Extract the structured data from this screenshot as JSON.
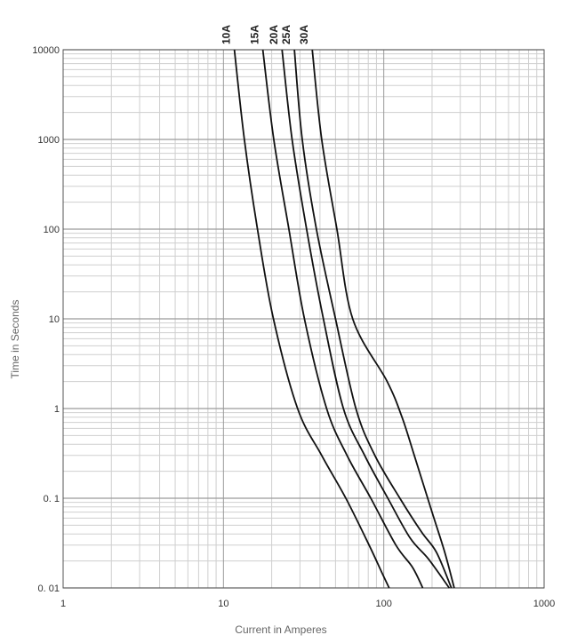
{
  "chart_data": {
    "type": "line",
    "title": "",
    "xlabel": "Current in Amperes",
    "ylabel": "Time in Seconds",
    "x_scale": "log",
    "y_scale": "log",
    "xlim": [
      1,
      1000
    ],
    "ylim": [
      0.01,
      10000
    ],
    "x_ticks": [
      {
        "value": 1,
        "label": "1"
      },
      {
        "value": 10,
        "label": "10"
      },
      {
        "value": 100,
        "label": "100"
      },
      {
        "value": 1000,
        "label": "1000"
      }
    ],
    "y_ticks": [
      {
        "value": 0.01,
        "label": "0. 01"
      },
      {
        "value": 0.1,
        "label": "0. 1"
      },
      {
        "value": 1,
        "label": "1"
      },
      {
        "value": 10,
        "label": "10"
      },
      {
        "value": 100,
        "label": "100"
      },
      {
        "value": 1000,
        "label": "1000"
      },
      {
        "value": 10000,
        "label": "10000"
      }
    ],
    "grid": true,
    "legend": "curve labels rotated at top of each curve",
    "series": [
      {
        "name": "10A",
        "points": [
          [
            11.7,
            10000
          ],
          [
            13.5,
            1000
          ],
          [
            16.3,
            100
          ],
          [
            20.5,
            10
          ],
          [
            29,
            1
          ],
          [
            41,
            0.3
          ],
          [
            58,
            0.1
          ],
          [
            81,
            0.03
          ],
          [
            97,
            0.015
          ],
          [
            108,
            0.01
          ]
        ]
      },
      {
        "name": "15A",
        "points": [
          [
            17.6,
            10000
          ],
          [
            20.6,
            1000
          ],
          [
            25.6,
            100
          ],
          [
            32,
            10
          ],
          [
            44,
            1
          ],
          [
            59,
            0.3
          ],
          [
            83,
            0.1
          ],
          [
            119,
            0.03
          ],
          [
            151,
            0.017
          ],
          [
            175,
            0.01
          ]
        ]
      },
      {
        "name": "20A",
        "points": [
          [
            23.2,
            10000
          ],
          [
            26.8,
            1000
          ],
          [
            33,
            100
          ],
          [
            42,
            10
          ],
          [
            56,
            1
          ],
          [
            76,
            0.3
          ],
          [
            106,
            0.1
          ],
          [
            146,
            0.036
          ],
          [
            190,
            0.021
          ],
          [
            256,
            0.01
          ]
        ]
      },
      {
        "name": "25A",
        "points": [
          [
            27.7,
            10000
          ],
          [
            31,
            1000
          ],
          [
            38,
            100
          ],
          [
            50,
            10
          ],
          [
            67,
            1
          ],
          [
            88,
            0.3
          ],
          [
            126,
            0.1
          ],
          [
            172,
            0.042
          ],
          [
            213,
            0.025
          ],
          [
            264,
            0.01
          ]
        ]
      },
      {
        "name": "30A",
        "points": [
          [
            35.8,
            10000
          ],
          [
            41,
            1000
          ],
          [
            51,
            100
          ],
          [
            64,
            10
          ],
          [
            105,
            2
          ],
          [
            130,
            0.8
          ],
          [
            155,
            0.3
          ],
          [
            200,
            0.07
          ],
          [
            240,
            0.025
          ],
          [
            275,
            0.01
          ]
        ]
      }
    ]
  },
  "colors": {
    "curve": "#111111",
    "grid_major": "#9a9a9a",
    "grid_minor": "#cfcfcf",
    "frame": "#555555",
    "axis_title": "#666666"
  }
}
